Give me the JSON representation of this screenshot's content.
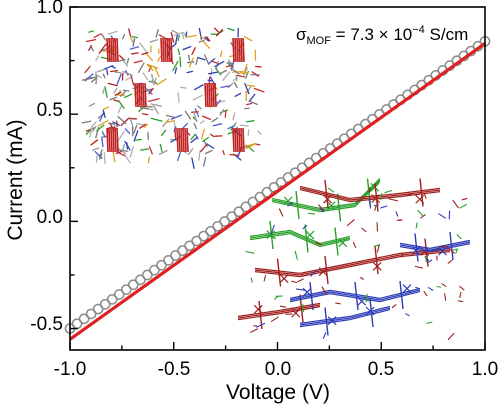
{
  "chart_data": {
    "type": "scatter",
    "xlabel": "Voltage (V)",
    "ylabel": "Current (mA)",
    "xlim": [
      -1.0,
      1.0
    ],
    "ylim": [
      -0.6,
      1.0
    ],
    "x_ticks": [
      "-1.0",
      "-0.5",
      "0.0",
      "0.5",
      "1.0"
    ],
    "y_ticks": [
      "-0.5",
      "0.0",
      "0.5",
      "1.0"
    ],
    "x_tick_values": [
      -1.0,
      -0.5,
      0.0,
      0.5,
      1.0
    ],
    "y_tick_values": [
      -0.5,
      0.0,
      0.5,
      1.0
    ],
    "annotation": {
      "sigma": "σ",
      "subscript": "MOF",
      "text": " = 7.3 × 10",
      "exponent": "−4",
      "unit": " S/cm"
    },
    "grid": false,
    "series": [
      {
        "kind": "markers",
        "marker": "open-circle",
        "color": "#8a8a8a",
        "x_start": -1.0,
        "x_end": 1.0,
        "count": 60,
        "y_at_x_start": -0.5,
        "y_at_x_end": 0.84
      },
      {
        "kind": "line",
        "color": "#e02020",
        "x": [
          -1.0,
          1.0
        ],
        "y": [
          -0.55,
          0.83
        ]
      }
    ],
    "insets": [
      {
        "description_key": "mof-framework-structure"
      },
      {
        "description_key": "mof-stacking-structure"
      }
    ]
  }
}
